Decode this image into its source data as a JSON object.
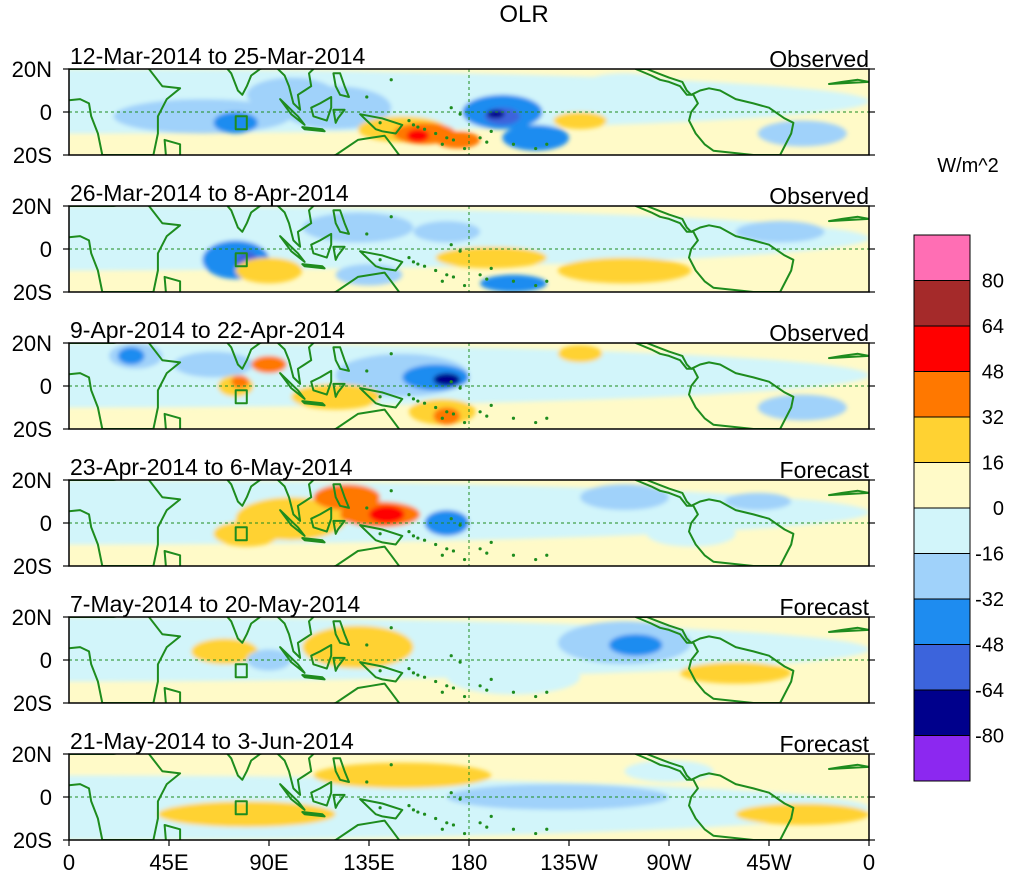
{
  "title": "OLR",
  "unit_label": "W/m^2",
  "lat_labels": [
    "20N",
    "0",
    "20S"
  ],
  "lon_labels": [
    "0",
    "45E",
    "90E",
    "135E",
    "180",
    "135W",
    "90W",
    "45W",
    "0"
  ],
  "panels": [
    {
      "period": "12-Mar-2014 to 25-Mar-2014",
      "kind": "Observed"
    },
    {
      "period": "26-Mar-2014 to 8-Apr-2014",
      "kind": "Observed"
    },
    {
      "period": "9-Apr-2014 to 22-Apr-2014",
      "kind": "Observed"
    },
    {
      "period": "23-Apr-2014 to 6-May-2014",
      "kind": "Forecast"
    },
    {
      "period": "7-May-2014 to 20-May-2014",
      "kind": "Forecast"
    },
    {
      "period": "21-May-2014 to 3-Jun-2014",
      "kind": "Forecast"
    }
  ],
  "colorbar": {
    "colors": [
      "#ff6eb4",
      "#a52a2a",
      "#ff0000",
      "#ff7800",
      "#ffd232",
      "#fffac8",
      "#d2f5fa",
      "#a0d2fa",
      "#1e8cf0",
      "#3c64dc",
      "#00008c",
      "#8c28f0"
    ],
    "labels": [
      "80",
      "64",
      "48",
      "32",
      "16",
      "0",
      "-16",
      "-32",
      "-48",
      "-64",
      "-80"
    ]
  },
  "colors": {
    "land_line": "#1e8c1e",
    "background": "#fffac8",
    "neg1": "#d2f5fa",
    "neg2": "#a0d2fa",
    "neg3": "#1e8cf0",
    "neg4": "#3c64dc",
    "neg5": "#00008c",
    "pos1": "#ffd232",
    "pos2": "#ff7800",
    "pos3": "#ff0000"
  }
}
